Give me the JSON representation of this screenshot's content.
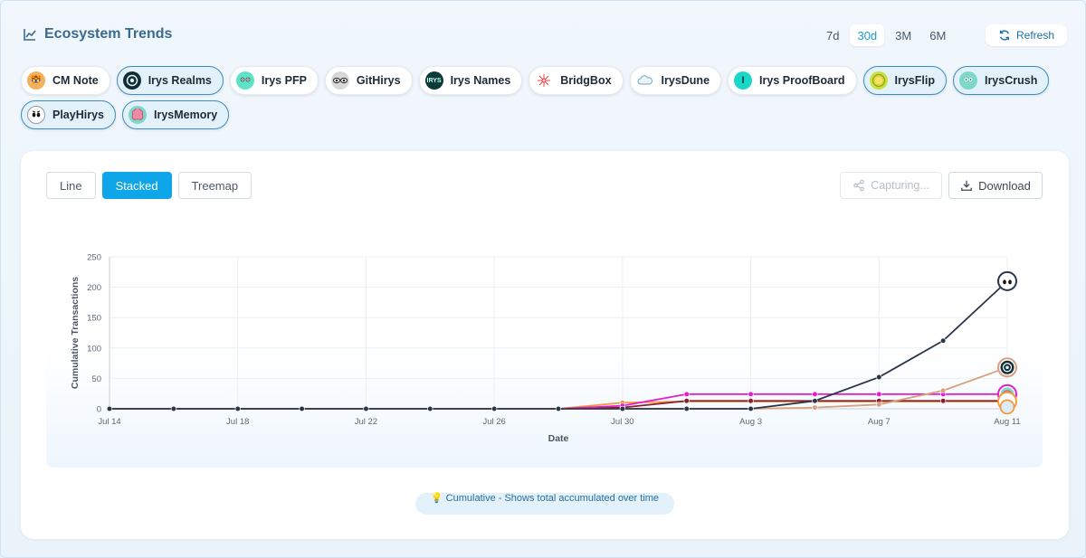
{
  "header": {
    "title": "Ecosystem Trends",
    "ranges": [
      "7d",
      "30d",
      "3M",
      "6M"
    ],
    "active_range": "30d",
    "refresh_label": "Refresh"
  },
  "projects": [
    {
      "name": "CM Note",
      "selected": false,
      "icon": "tiger-icon",
      "color": "#f2b25c"
    },
    {
      "name": "Irys Realms",
      "selected": true,
      "icon": "realms-icon",
      "color": "#0f2d33"
    },
    {
      "name": "Irys PFP",
      "selected": false,
      "icon": "pfp-face-icon",
      "color": "#5fe3c8"
    },
    {
      "name": "GitHirys",
      "selected": false,
      "icon": "githirys-icon",
      "color": "#bdbdbd"
    },
    {
      "name": "Irys Names",
      "selected": false,
      "icon": "names-icon",
      "color": "#0a3b3b"
    },
    {
      "name": "BridgBox",
      "selected": false,
      "icon": "bridge-icon",
      "color": "#f3c1c1"
    },
    {
      "name": "IrysDune",
      "selected": false,
      "icon": "cloud-icon",
      "color": "#dfeef6"
    },
    {
      "name": "Irys ProofBoard",
      "selected": false,
      "icon": "proofboard-icon",
      "color": "#19d8c8"
    },
    {
      "name": "IrysFlip",
      "selected": true,
      "icon": "coin-icon",
      "color": "#c7e23b"
    },
    {
      "name": "IrysCrush",
      "selected": true,
      "icon": "crush-face-icon",
      "color": "#7fd8c7"
    },
    {
      "name": "PlayHirys",
      "selected": true,
      "icon": "ghost-face-icon",
      "color": "#1c1c1c"
    },
    {
      "name": "IrysMemory",
      "selected": true,
      "icon": "brain-icon",
      "color": "#f08aa8"
    }
  ],
  "views": [
    "Line",
    "Stacked",
    "Treemap"
  ],
  "active_view": "Stacked",
  "capturing_label": "Capturing...",
  "download_label": "Download",
  "note": "💡 Cumulative - Shows total accumulated over time",
  "chart_data": {
    "type": "line",
    "xlabel": "Date",
    "ylabel": "Cumulative Transactions",
    "ylim": [
      0,
      250
    ],
    "yticks": [
      0,
      50,
      100,
      150,
      200,
      250
    ],
    "x": [
      "Jul 14",
      "Jul 16",
      "Jul 18",
      "Jul 20",
      "Jul 22",
      "Jul 24",
      "Jul 26",
      "Jul 28",
      "Jul 30",
      "Aug 1",
      "Aug 3",
      "Aug 5",
      "Aug 7",
      "Aug 9",
      "Aug 11"
    ],
    "xtick_labels": [
      "Jul 14",
      "",
      "Jul 18",
      "",
      "Jul 22",
      "",
      "Jul 26",
      "",
      "Jul 30",
      "",
      "Aug 3",
      "",
      "Aug 7",
      "",
      "Aug 11"
    ],
    "grid": true,
    "series": [
      {
        "name": "PlayHirys",
        "color": "#2b3648",
        "values": [
          0,
          0,
          0,
          0,
          0,
          0,
          0,
          0,
          0,
          0,
          0,
          13,
          52,
          112,
          210
        ]
      },
      {
        "name": "Irys Realms",
        "color": "#d8a07e",
        "values": [
          0,
          0,
          0,
          0,
          0,
          0,
          0,
          0,
          0,
          0,
          0,
          2,
          7,
          30,
          68
        ]
      },
      {
        "name": "IrysMemory",
        "color": "#e61bd0",
        "values": [
          0,
          0,
          0,
          0,
          0,
          0,
          0,
          0,
          5,
          24,
          24,
          24,
          24,
          24,
          24
        ]
      },
      {
        "name": "IrysFlip",
        "color": "#8b1e2a",
        "values": [
          0,
          0,
          0,
          0,
          0,
          0,
          0,
          0,
          2,
          13,
          13,
          13,
          13,
          13,
          13
        ]
      },
      {
        "name": "IrysCrush",
        "color": "#f39c3c",
        "values": [
          0,
          0,
          0,
          0,
          0,
          0,
          0,
          0,
          10,
          12,
          12,
          12,
          12,
          12,
          12
        ]
      }
    ],
    "end_badges": [
      {
        "series": "PlayHirys",
        "icon": "ghost-face-icon"
      },
      {
        "series": "Irys Realms",
        "icon": "realms-icon"
      },
      {
        "series": "IrysMemory",
        "icon": "brain-icon"
      },
      {
        "series": "IrysCrush",
        "icon": "crush-face-icon"
      }
    ]
  }
}
